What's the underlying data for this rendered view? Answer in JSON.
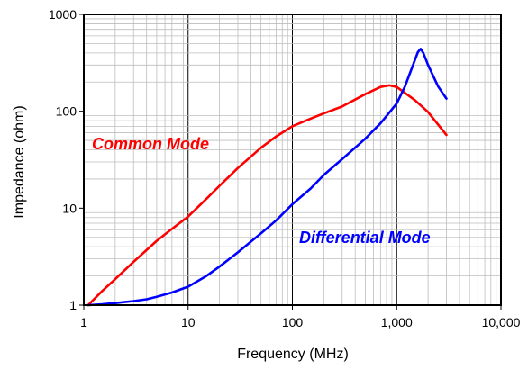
{
  "chart_data": {
    "type": "line",
    "title": "",
    "xlabel": "Frequency (MHz)",
    "ylabel": "Impedance (ohm)",
    "xscale": "log",
    "yscale": "log",
    "xlim": [
      1,
      10000
    ],
    "ylim": [
      1,
      1000
    ],
    "grid": "on",
    "x_tick_labels": [
      "1",
      "10",
      "100",
      "1,000",
      "10,000"
    ],
    "x_tick_values": [
      1,
      10,
      100,
      1000,
      10000
    ],
    "y_tick_labels": [
      "1",
      "10",
      "100",
      "1000"
    ],
    "y_tick_values": [
      1,
      10,
      100,
      1000
    ],
    "colors": {
      "common": "#ff0000",
      "differential": "#0000ff"
    },
    "annotations": [
      {
        "text": "Common Mode",
        "series": "Common Mode",
        "color": "#ff0000"
      },
      {
        "text": "Differential Mode",
        "series": "Differential Mode",
        "color": "#0000ff"
      }
    ],
    "series": [
      {
        "name": "Common Mode",
        "color": "#ff0000",
        "x": [
          1.1,
          1.5,
          2,
          3,
          5,
          7,
          10,
          15,
          20,
          30,
          50,
          70,
          100,
          150,
          200,
          300,
          500,
          700,
          850,
          1000,
          1500,
          2000,
          3000
        ],
        "y": [
          1.0,
          1.4,
          1.85,
          2.8,
          4.6,
          6.1,
          8.2,
          12.5,
          17,
          26,
          42,
          55,
          70,
          84,
          95,
          112,
          150,
          178,
          185,
          178,
          130,
          98,
          57
        ]
      },
      {
        "name": "Differential Mode",
        "color": "#0000ff",
        "x": [
          1.1,
          1.5,
          2,
          3,
          4,
          5,
          7,
          10,
          15,
          20,
          30,
          50,
          70,
          100,
          150,
          200,
          300,
          500,
          700,
          1000,
          1200,
          1400,
          1600,
          1700,
          1800,
          2000,
          2500,
          3000
        ],
        "y": [
          1.0,
          1.02,
          1.05,
          1.1,
          1.15,
          1.22,
          1.35,
          1.55,
          2.0,
          2.5,
          3.5,
          5.5,
          7.5,
          11,
          16,
          22,
          32,
          52,
          75,
          120,
          180,
          280,
          410,
          440,
          400,
          300,
          180,
          135
        ]
      }
    ]
  }
}
